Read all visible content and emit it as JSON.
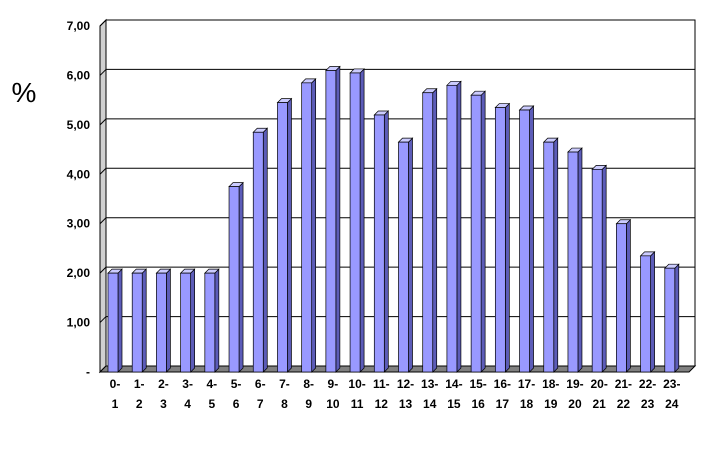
{
  "chart_data": {
    "type": "bar",
    "ylabel": "%",
    "categories": [
      "0-1",
      "1-2",
      "2-3",
      "3-4",
      "4-5",
      "5-6",
      "6-7",
      "7-8",
      "8-9",
      "9-10",
      "10-11",
      "11-12",
      "12-13",
      "13-14",
      "14-15",
      "15-16",
      "16-17",
      "17-18",
      "18-19",
      "19-20",
      "20-21",
      "21-22",
      "22-23",
      "23-24"
    ],
    "values": [
      2.0,
      2.0,
      2.0,
      2.0,
      2.0,
      3.75,
      4.85,
      5.45,
      5.85,
      6.1,
      6.05,
      5.2,
      4.65,
      5.65,
      5.8,
      5.6,
      5.35,
      5.3,
      4.65,
      4.45,
      4.1,
      3.0,
      2.35,
      2.1
    ],
    "color": "#9999ff",
    "ylim": [
      0,
      7
    ],
    "yticks": [
      {
        "value": 0,
        "label": "-"
      },
      {
        "value": 1,
        "label": "1,00"
      },
      {
        "value": 2,
        "label": "2,00"
      },
      {
        "value": 3,
        "label": "3,00"
      },
      {
        "value": 4,
        "label": "4,00"
      },
      {
        "value": 5,
        "label": "5,00"
      },
      {
        "value": 6,
        "label": "6,00"
      },
      {
        "value": 7,
        "label": "7,00"
      }
    ],
    "grid": true
  }
}
